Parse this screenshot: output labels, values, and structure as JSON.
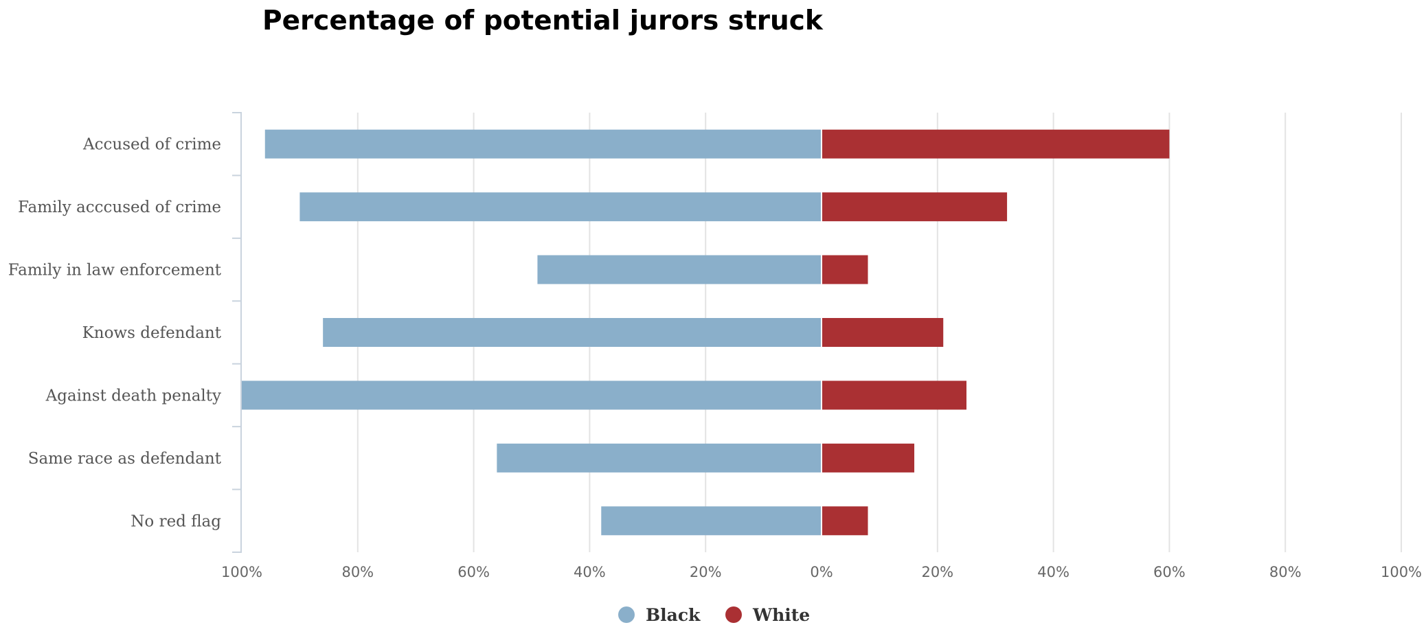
{
  "chart_data": {
    "type": "bar",
    "orientation": "horizontal",
    "layout": "diverging",
    "title": "Percentage of potential jurors struck",
    "categories": [
      "Accused of crime",
      "Family acccused of crime",
      "Family in law enforcement",
      "Knows defendant",
      "Against death penalty",
      "Same race as defendant",
      "No red flag"
    ],
    "series": [
      {
        "name": "Black",
        "color": "#8aafca",
        "direction": "left",
        "values": [
          96,
          90,
          49,
          86,
          100,
          56,
          38
        ]
      },
      {
        "name": "White",
        "color": "#aa3033",
        "direction": "right",
        "values": [
          60,
          32,
          8,
          21,
          25,
          16,
          8
        ]
      }
    ],
    "xlim": [
      -100,
      100
    ],
    "x_ticks": [
      -100,
      -80,
      -60,
      -40,
      -20,
      0,
      20,
      40,
      60,
      80,
      100
    ],
    "x_tick_labels": [
      "100%",
      "80%",
      "60%",
      "40%",
      "20%",
      "0%",
      "20%",
      "40%",
      "60%",
      "80%",
      "100%"
    ],
    "grid": true,
    "legend_position": "bottom-center"
  }
}
